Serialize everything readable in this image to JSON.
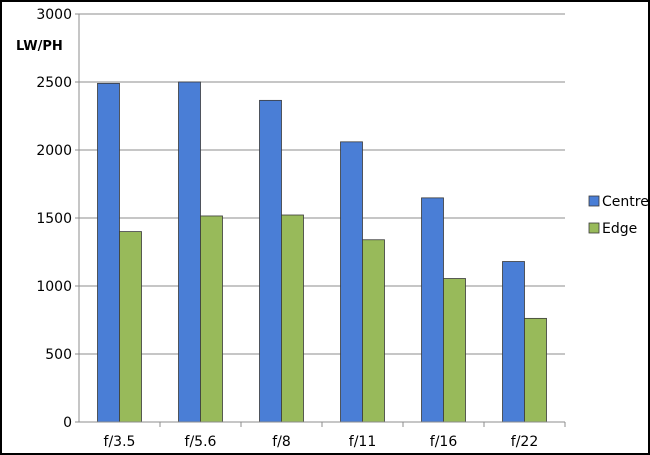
{
  "chart_data": {
    "type": "bar",
    "title": "",
    "xlabel": "",
    "ylabel": "LW/PH",
    "categories": [
      "f/3.5",
      "f/5.6",
      "f/8",
      "f/11",
      "f/16",
      "f/22"
    ],
    "series": [
      {
        "name": "Centre",
        "color": "#4a7ed6",
        "values": [
          2490,
          2500,
          2365,
          2060,
          1648,
          1180
        ]
      },
      {
        "name": "Edge",
        "color": "#98ba5a",
        "values": [
          1400,
          1515,
          1522,
          1340,
          1055,
          762
        ]
      }
    ],
    "ylim": [
      0,
      3000
    ],
    "yticks": [
      0,
      500,
      1000,
      1500,
      2000,
      2500,
      3000
    ],
    "grid": true,
    "legend": "right"
  }
}
